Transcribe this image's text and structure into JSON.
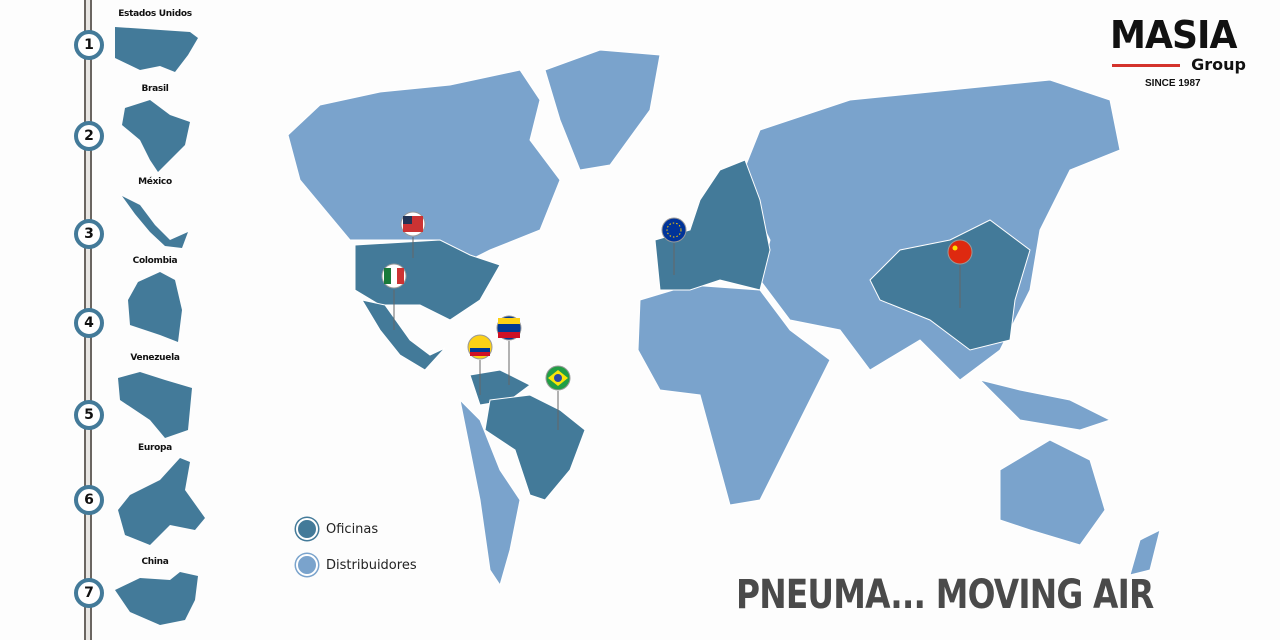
{
  "colors": {
    "office": "#437a99",
    "distributor": "#7aa3cc",
    "rail": "#6b6661",
    "accent": "#d4332c"
  },
  "countries": [
    {
      "number": "1",
      "name": "Estados Unidos"
    },
    {
      "number": "2",
      "name": "Brasil"
    },
    {
      "number": "3",
      "name": "México"
    },
    {
      "number": "4",
      "name": "Colombia"
    },
    {
      "number": "5",
      "name": "Venezuela"
    },
    {
      "number": "6",
      "name": "Europa"
    },
    {
      "number": "7",
      "name": "China"
    }
  ],
  "logo": {
    "name": "MASIA",
    "sub": "Group",
    "since": "SINCE 1987"
  },
  "legend": {
    "offices": "Oficinas",
    "distributors": "Distribuidores"
  },
  "slogan": "PNEUMA... MOVING AIR",
  "pins": [
    {
      "flag": "usa-flag-icon"
    },
    {
      "flag": "mexico-flag-icon"
    },
    {
      "flag": "colombia-flag-icon"
    },
    {
      "flag": "venezuela-flag-icon"
    },
    {
      "flag": "brazil-flag-icon"
    },
    {
      "flag": "eu-flag-icon"
    },
    {
      "flag": "china-flag-icon"
    }
  ]
}
